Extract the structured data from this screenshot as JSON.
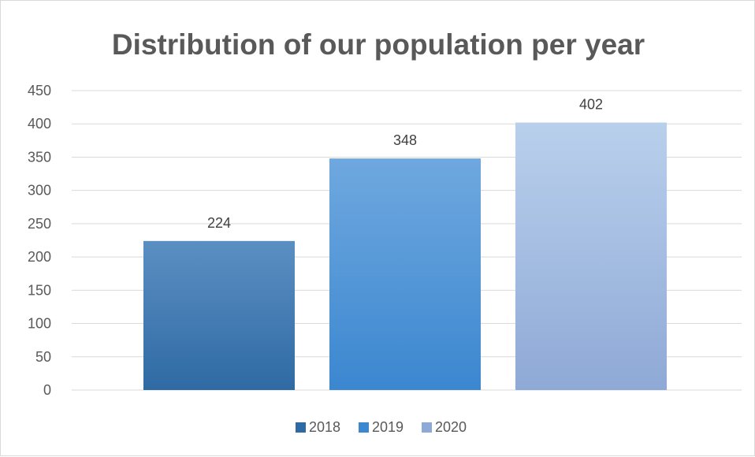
{
  "chart_data": {
    "type": "bar",
    "title": "Distribution of our population per year",
    "categories": [
      "2018",
      "2019",
      "2020"
    ],
    "values": [
      224,
      348,
      402
    ],
    "data_labels": [
      "224",
      "348",
      "402"
    ],
    "ylim": [
      0,
      450
    ],
    "y_ticks": [
      "0",
      "50",
      "100",
      "150",
      "200",
      "250",
      "300",
      "350",
      "400",
      "450"
    ],
    "grid": true,
    "legend_position": "bottom",
    "legend": [
      "2018",
      "2019",
      "2020"
    ],
    "colors": {
      "2018": [
        "#5b8fc2",
        "#2f6aa4"
      ],
      "2019": [
        "#6fa8df",
        "#3b87d0"
      ],
      "2020": [
        "#b9d0ec",
        "#8fa9d6"
      ]
    }
  }
}
